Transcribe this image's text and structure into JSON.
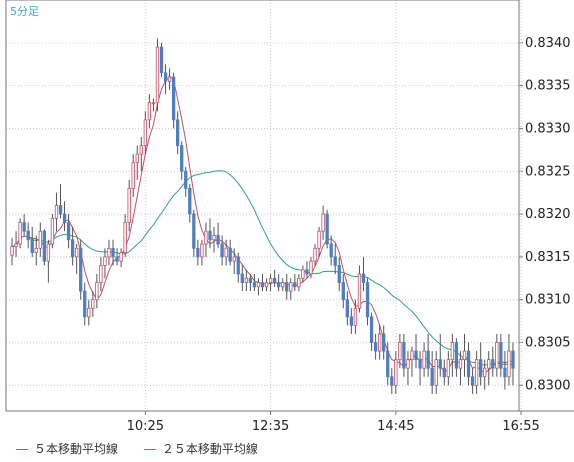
{
  "timeframe": "5分足",
  "legend": [
    {
      "label": "５本移動平均線",
      "color": "#c0506a"
    },
    {
      "label": "２５本移動平均線",
      "color": "#2aa67a"
    }
  ],
  "chart_data": {
    "type": "candlestick",
    "title": "",
    "xlabel": "",
    "ylabel": "",
    "ylim": [
      0.8297,
      0.8345
    ],
    "y_ticks": [
      "0.8340",
      "0.8335",
      "0.8330",
      "0.8325",
      "0.8320",
      "0.8315",
      "0.8310",
      "0.8305",
      "0.8300"
    ],
    "x_ticks": [
      {
        "label": "10:25",
        "index": 33
      },
      {
        "label": "12:35",
        "index": 64
      },
      {
        "label": "14:45",
        "index": 95
      },
      {
        "label": "16:55",
        "index": 126
      }
    ],
    "colors": {
      "up": "#ffffff",
      "up_border": "#c0506a",
      "down": "#4f7fc0",
      "wick": "#555555",
      "grid": "#c9c9c9"
    },
    "ohlc": [
      [
        0.83152,
        0.83172,
        0.8314,
        0.83162
      ],
      [
        0.83162,
        0.8318,
        0.8315,
        0.83165
      ],
      [
        0.83165,
        0.83195,
        0.8316,
        0.8319
      ],
      [
        0.8319,
        0.832,
        0.83175,
        0.8318
      ],
      [
        0.8318,
        0.8319,
        0.8316,
        0.8317
      ],
      [
        0.8317,
        0.83185,
        0.8315,
        0.83155
      ],
      [
        0.83155,
        0.83175,
        0.8314,
        0.8316
      ],
      [
        0.8316,
        0.8319,
        0.8315,
        0.8318
      ],
      [
        0.8318,
        0.83182,
        0.8314,
        0.83145
      ],
      [
        0.83145,
        0.8317,
        0.8312,
        0.83165
      ],
      [
        0.83165,
        0.832,
        0.8316,
        0.83195
      ],
      [
        0.83195,
        0.83225,
        0.8318,
        0.8321
      ],
      [
        0.8321,
        0.83235,
        0.83195,
        0.832
      ],
      [
        0.832,
        0.83215,
        0.8318,
        0.8319
      ],
      [
        0.8319,
        0.832,
        0.8316,
        0.8317
      ],
      [
        0.8317,
        0.83185,
        0.8314,
        0.8315
      ],
      [
        0.8315,
        0.83165,
        0.8313,
        0.8316
      ],
      [
        0.8316,
        0.8317,
        0.831,
        0.8311
      ],
      [
        0.8311,
        0.8312,
        0.8307,
        0.8308
      ],
      [
        0.8308,
        0.831,
        0.8307,
        0.8309
      ],
      [
        0.8309,
        0.8311,
        0.8308,
        0.831
      ],
      [
        0.831,
        0.8313,
        0.8309,
        0.8312
      ],
      [
        0.8312,
        0.8315,
        0.8311,
        0.8314
      ],
      [
        0.8314,
        0.8316,
        0.83125,
        0.8315
      ],
      [
        0.8315,
        0.8317,
        0.8314,
        0.8316
      ],
      [
        0.8316,
        0.8317,
        0.8314,
        0.8315
      ],
      [
        0.8315,
        0.8316,
        0.8314,
        0.83145
      ],
      [
        0.83145,
        0.8316,
        0.83138,
        0.83155
      ],
      [
        0.83155,
        0.832,
        0.8315,
        0.8319
      ],
      [
        0.8319,
        0.8324,
        0.8318,
        0.8323
      ],
      [
        0.8323,
        0.8327,
        0.8322,
        0.8326
      ],
      [
        0.8326,
        0.8328,
        0.8324,
        0.8327
      ],
      [
        0.8327,
        0.8329,
        0.8325,
        0.8328
      ],
      [
        0.8328,
        0.8332,
        0.8327,
        0.8331
      ],
      [
        0.8331,
        0.8334,
        0.833,
        0.8333
      ],
      [
        0.8333,
        0.83335,
        0.8332,
        0.8333
      ],
      [
        0.8333,
        0.83405,
        0.8332,
        0.83395
      ],
      [
        0.83395,
        0.834,
        0.8336,
        0.83365
      ],
      [
        0.83365,
        0.83375,
        0.8334,
        0.83355
      ],
      [
        0.83355,
        0.8337,
        0.83345,
        0.8336
      ],
      [
        0.8336,
        0.83365,
        0.833,
        0.8331
      ],
      [
        0.8331,
        0.8332,
        0.8327,
        0.8328
      ],
      [
        0.8328,
        0.83285,
        0.8324,
        0.8325
      ],
      [
        0.8325,
        0.83255,
        0.8322,
        0.8323
      ],
      [
        0.8323,
        0.83235,
        0.8319,
        0.832
      ],
      [
        0.832,
        0.83205,
        0.8315,
        0.8316
      ],
      [
        0.8316,
        0.8317,
        0.8314,
        0.8315
      ],
      [
        0.8315,
        0.8317,
        0.8314,
        0.83165
      ],
      [
        0.83165,
        0.8319,
        0.8315,
        0.8318
      ],
      [
        0.8318,
        0.83195,
        0.8316,
        0.8317
      ],
      [
        0.8317,
        0.83185,
        0.83155,
        0.83175
      ],
      [
        0.83175,
        0.8319,
        0.8316,
        0.83165
      ],
      [
        0.83165,
        0.83175,
        0.8314,
        0.8315
      ],
      [
        0.8315,
        0.8317,
        0.8314,
        0.8316
      ],
      [
        0.8316,
        0.8317,
        0.8314,
        0.83145
      ],
      [
        0.83145,
        0.8316,
        0.8313,
        0.8315
      ],
      [
        0.8315,
        0.83155,
        0.8312,
        0.8313
      ],
      [
        0.8313,
        0.8314,
        0.8311,
        0.8312
      ],
      [
        0.8312,
        0.83135,
        0.8311,
        0.83125
      ],
      [
        0.83125,
        0.8313,
        0.8311,
        0.8312
      ],
      [
        0.8312,
        0.8313,
        0.8311,
        0.83115
      ],
      [
        0.83115,
        0.83125,
        0.83105,
        0.8312
      ],
      [
        0.8312,
        0.8313,
        0.8311,
        0.83115
      ],
      [
        0.83115,
        0.83125,
        0.8311,
        0.8312
      ],
      [
        0.8312,
        0.8313,
        0.8311,
        0.83125
      ],
      [
        0.83125,
        0.83135,
        0.83115,
        0.8312
      ],
      [
        0.8312,
        0.8313,
        0.8311,
        0.83115
      ],
      [
        0.83115,
        0.83125,
        0.8311,
        0.8312
      ],
      [
        0.8312,
        0.8313,
        0.831,
        0.8311
      ],
      [
        0.8311,
        0.83125,
        0.831,
        0.8312
      ],
      [
        0.8312,
        0.8313,
        0.8311,
        0.83115
      ],
      [
        0.83115,
        0.8313,
        0.8311,
        0.83125
      ],
      [
        0.83125,
        0.8314,
        0.8312,
        0.83135
      ],
      [
        0.83135,
        0.83145,
        0.83125,
        0.8313
      ],
      [
        0.8313,
        0.8315,
        0.83125,
        0.83145
      ],
      [
        0.83145,
        0.83165,
        0.8314,
        0.8316
      ],
      [
        0.8316,
        0.83185,
        0.8315,
        0.8318
      ],
      [
        0.8318,
        0.8321,
        0.8317,
        0.832
      ],
      [
        0.832,
        0.83205,
        0.8316,
        0.83165
      ],
      [
        0.83165,
        0.83175,
        0.8314,
        0.8315
      ],
      [
        0.8315,
        0.83165,
        0.8313,
        0.8314
      ],
      [
        0.8314,
        0.8315,
        0.8311,
        0.8312
      ],
      [
        0.8312,
        0.8313,
        0.8309,
        0.831
      ],
      [
        0.831,
        0.8311,
        0.8307,
        0.8308
      ],
      [
        0.8308,
        0.8309,
        0.8306,
        0.8307
      ],
      [
        0.8307,
        0.831,
        0.8306,
        0.8309
      ],
      [
        0.8309,
        0.8314,
        0.83085,
        0.8313
      ],
      [
        0.8313,
        0.8315,
        0.8311,
        0.8312
      ],
      [
        0.8312,
        0.83125,
        0.8307,
        0.8308
      ],
      [
        0.8308,
        0.83085,
        0.8304,
        0.8305
      ],
      [
        0.8305,
        0.8306,
        0.8303,
        0.8304
      ],
      [
        0.8304,
        0.8307,
        0.8303,
        0.8306
      ],
      [
        0.8306,
        0.8307,
        0.8303,
        0.8304
      ],
      [
        0.8304,
        0.8305,
        0.83,
        0.8301
      ],
      [
        0.8301,
        0.8302,
        0.8299,
        0.83
      ],
      [
        0.83,
        0.8304,
        0.8299,
        0.8303
      ],
      [
        0.8303,
        0.8306,
        0.8302,
        0.8305
      ],
      [
        0.8305,
        0.8306,
        0.8301,
        0.8302
      ],
      [
        0.8302,
        0.8304,
        0.83,
        0.8303
      ],
      [
        0.8303,
        0.83045,
        0.8301,
        0.8304
      ],
      [
        0.8304,
        0.8306,
        0.8302,
        0.8303
      ],
      [
        0.8303,
        0.8304,
        0.83,
        0.8302
      ],
      [
        0.8302,
        0.8305,
        0.8301,
        0.8304
      ],
      [
        0.8304,
        0.8306,
        0.8301,
        0.8302
      ],
      [
        0.8302,
        0.8304,
        0.8299,
        0.83
      ],
      [
        0.83,
        0.8304,
        0.8299,
        0.8303
      ],
      [
        0.8303,
        0.8306,
        0.8301,
        0.8302
      ],
      [
        0.8302,
        0.8303,
        0.83,
        0.8301
      ],
      [
        0.8301,
        0.8304,
        0.83,
        0.8303
      ],
      [
        0.8303,
        0.8306,
        0.8301,
        0.8305
      ],
      [
        0.8305,
        0.83055,
        0.8301,
        0.8302
      ],
      [
        0.8302,
        0.8304,
        0.83,
        0.8303
      ],
      [
        0.8303,
        0.8306,
        0.8301,
        0.8304
      ],
      [
        0.8304,
        0.8305,
        0.83,
        0.8301
      ],
      [
        0.8301,
        0.8302,
        0.8299,
        0.83
      ],
      [
        0.83,
        0.8304,
        0.8299,
        0.8303
      ],
      [
        0.8303,
        0.8305,
        0.83,
        0.8301
      ],
      [
        0.8301,
        0.8303,
        0.82995,
        0.8302
      ],
      [
        0.8302,
        0.8304,
        0.83,
        0.8303
      ],
      [
        0.8303,
        0.83045,
        0.8301,
        0.8302
      ],
      [
        0.8302,
        0.8306,
        0.8301,
        0.8305
      ],
      [
        0.8305,
        0.8306,
        0.8301,
        0.8302
      ],
      [
        0.8302,
        0.8304,
        0.82995,
        0.8301
      ],
      [
        0.8301,
        0.8306,
        0.83,
        0.8304
      ],
      [
        0.8304,
        0.8305,
        0.83,
        0.8302
      ]
    ]
  }
}
